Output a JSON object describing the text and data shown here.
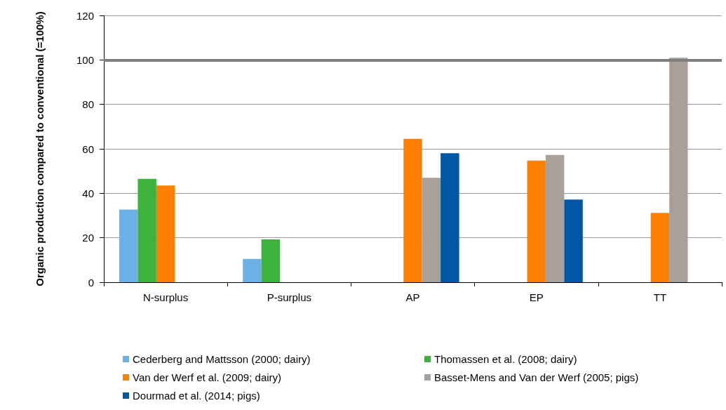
{
  "chart_data": {
    "type": "bar",
    "ylabel": "Organic production compared to conventional (=100%)",
    "categories": [
      "N-surplus",
      "P-surplus",
      "AP",
      "EP",
      "TT"
    ],
    "series": [
      {
        "name": "Cederberg and Mattsson (2000; dairy)",
        "color": "#6cb0e8",
        "values": [
          32.7,
          10.5,
          null,
          null,
          null
        ]
      },
      {
        "name": "Thomassen et al. (2008; dairy)",
        "color": "#3cb43c",
        "values": [
          46.5,
          19.3,
          null,
          null,
          null
        ]
      },
      {
        "name": "Van der Werf et al. (2009; dairy)",
        "color": "#ff7f00",
        "values": [
          43.5,
          null,
          64.5,
          54.7,
          31.2
        ]
      },
      {
        "name": "Basset-Mens and Van der Werf (2005; pigs)",
        "color": "#a8a09a",
        "values": [
          null,
          null,
          47,
          57.2,
          101
        ]
      },
      {
        "name": "Dourmad et al. (2014; pigs)",
        "color": "#0057a3",
        "values": [
          null,
          null,
          58,
          37.2,
          null
        ]
      }
    ],
    "ylim": [
      0,
      120
    ],
    "yticks": [
      0,
      20,
      40,
      60,
      80,
      100,
      120
    ],
    "grid": "y",
    "legend": "bottom",
    "ref_lines": [
      {
        "axis": "y",
        "value": 100,
        "color": "#808080"
      }
    ]
  }
}
